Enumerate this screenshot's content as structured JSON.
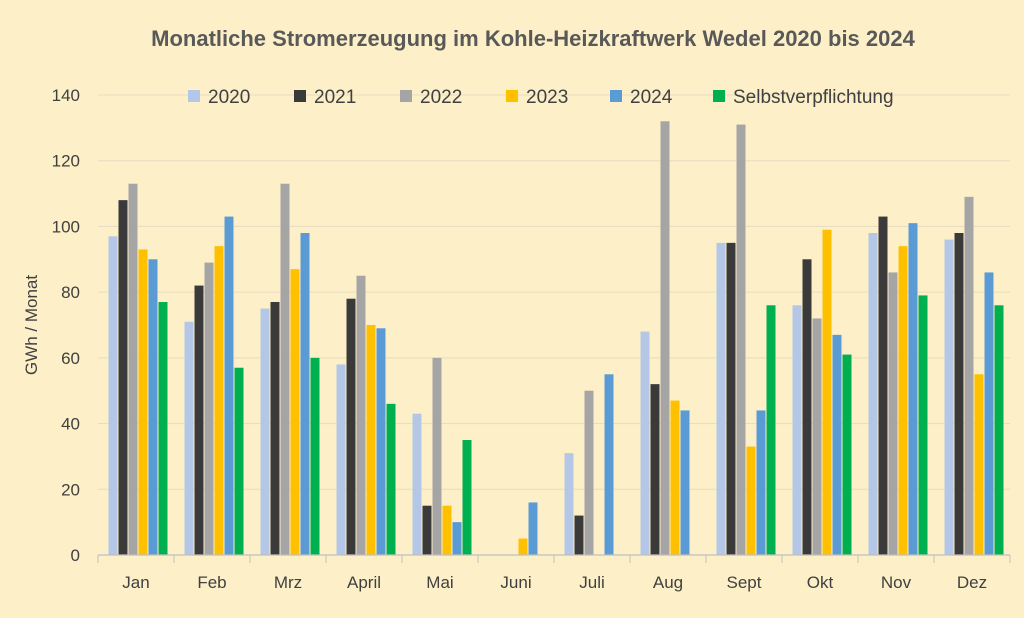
{
  "chart_data": {
    "type": "bar",
    "title": "Monatliche Stromerzeugung im Kohle-Heizkraftwerk Wedel 2020 bis 2024",
    "xlabel": "",
    "ylabel": "GWh / Monat",
    "ylim": [
      0,
      140
    ],
    "yticks": [
      0,
      20,
      40,
      60,
      80,
      100,
      120,
      140
    ],
    "grid": true,
    "legend_position": "top",
    "categories": [
      "Jan",
      "Feb",
      "Mrz",
      "April",
      "Mai",
      "Juni",
      "Juli",
      "Aug",
      "Sept",
      "Okt",
      "Nov",
      "Dez"
    ],
    "series": [
      {
        "name": "2020",
        "color": "#b4c7e7",
        "values": [
          97,
          71,
          75,
          58,
          43,
          0,
          31,
          68,
          95,
          76,
          98,
          96
        ]
      },
      {
        "name": "2021",
        "color": "#3a3a3a",
        "values": [
          108,
          82,
          77,
          78,
          15,
          0,
          12,
          52,
          95,
          90,
          103,
          98
        ]
      },
      {
        "name": "2022",
        "color": "#a5a5a5",
        "values": [
          113,
          89,
          113,
          85,
          60,
          0,
          50,
          132,
          131,
          72,
          86,
          109
        ]
      },
      {
        "name": "2023",
        "color": "#ffc000",
        "values": [
          93,
          94,
          87,
          70,
          15,
          5,
          0,
          47,
          33,
          99,
          94,
          55
        ]
      },
      {
        "name": "2024",
        "color": "#5b9bd5",
        "values": [
          90,
          103,
          98,
          69,
          10,
          16,
          55,
          44,
          44,
          67,
          101,
          86
        ]
      },
      {
        "name": "Selbstverpflichtung",
        "color": "#00b050",
        "values": [
          77,
          57,
          60,
          46,
          35,
          0,
          0,
          0,
          76,
          61,
          79,
          76
        ]
      }
    ]
  }
}
